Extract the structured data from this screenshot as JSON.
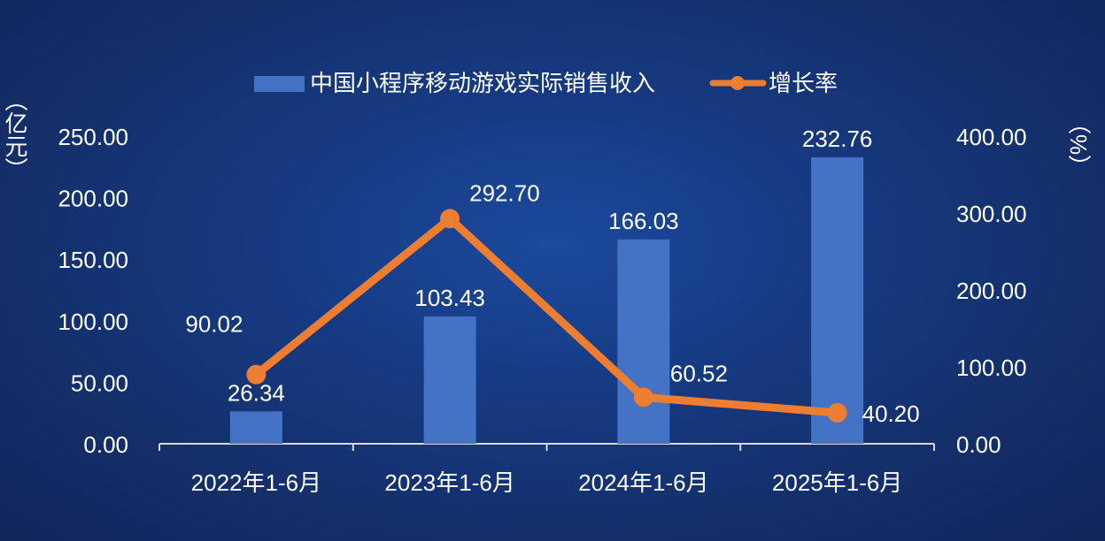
{
  "chart_data": {
    "type": "bar",
    "categories": [
      "2022年1-6月",
      "2023年1-6月",
      "2024年1-6月",
      "2025年1-6月"
    ],
    "series": [
      {
        "name": "中国小程序移动游戏实际销售收入",
        "type": "bar",
        "axis": "left",
        "values": [
          26.34,
          103.43,
          166.03,
          232.76
        ],
        "labels": [
          "26.34",
          "103.43",
          "166.03",
          "232.76"
        ]
      },
      {
        "name": "增长率",
        "type": "line",
        "axis": "right",
        "values": [
          90.02,
          292.7,
          60.52,
          40.2
        ],
        "labels": [
          "90.02",
          "292.70",
          "60.52",
          "40.20"
        ]
      }
    ],
    "ylabel": "（亿元）",
    "y2label": "（%）",
    "ylim": [
      0,
      250
    ],
    "y2lim": [
      0,
      400
    ],
    "yticks": [
      "0.00",
      "50.00",
      "100.00",
      "150.00",
      "200.00",
      "250.00"
    ],
    "y2ticks": [
      "0.00",
      "100.00",
      "200.00",
      "300.00",
      "400.00"
    ],
    "legend_position": "top-center",
    "grid": false,
    "colors": {
      "bar": "#4472c4",
      "line": "#ed7d31",
      "axis": "#d9d9d9"
    }
  }
}
